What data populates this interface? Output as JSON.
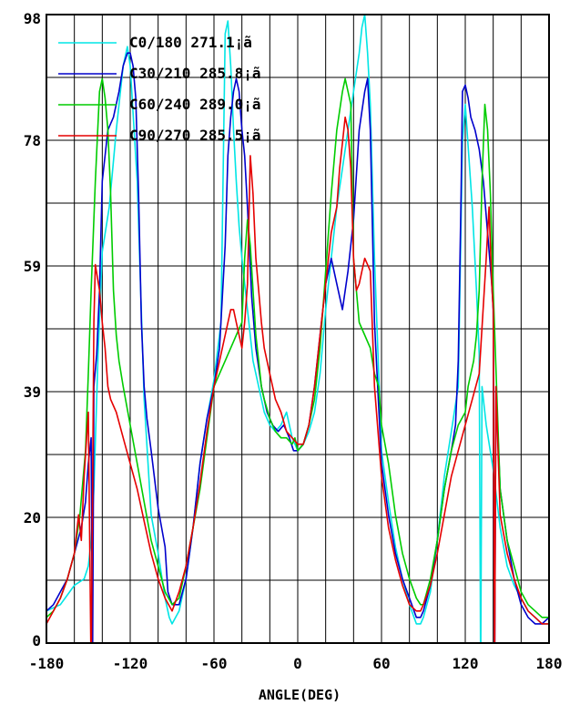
{
  "chart_data": {
    "type": "line",
    "title": "",
    "xlabel": "ANGLE(DEG)",
    "ylabel": "",
    "xlim": [
      -180,
      180
    ],
    "ylim": [
      0,
      98
    ],
    "grid": true,
    "legend_position": "top-left",
    "x_ticks": [
      "-180",
      "-120",
      "-60",
      "0",
      "60",
      "120",
      "180"
    ],
    "y_ticks": [
      "98",
      "78",
      "59",
      "39",
      "20",
      "0"
    ],
    "series": [
      {
        "name": "C0/180 271.1¡ã",
        "color": "#00e5e5",
        "x": [
          -180,
          -170,
          -160,
          -153,
          -150,
          -148,
          -146,
          -143,
          -140,
          -135,
          -130,
          -125,
          -122,
          -120,
          -115,
          -110,
          -105,
          -100,
          -95,
          -92,
          -90,
          -85,
          -80,
          -75,
          -70,
          -65,
          -60,
          -55,
          -52,
          -50,
          -48,
          -46,
          -44,
          -42,
          -40,
          -36,
          -32,
          -28,
          -24,
          -20,
          -16,
          -12,
          -8,
          -4,
          0,
          4,
          8,
          12,
          16,
          20,
          24,
          28,
          32,
          36,
          40,
          44,
          46,
          48,
          50,
          52,
          55,
          60,
          65,
          70,
          75,
          80,
          85,
          88,
          90,
          95,
          100,
          105,
          110,
          115,
          118,
          120,
          125,
          128,
          130,
          131,
          132,
          135,
          140,
          145,
          150,
          155,
          160,
          165,
          170,
          175,
          180
        ],
        "y": [
          5,
          6,
          9,
          10,
          12,
          16,
          24,
          45,
          61,
          68,
          80,
          90,
          93,
          90,
          72,
          38,
          20,
          14,
          7,
          4,
          3,
          5,
          10,
          18,
          28,
          35,
          41,
          50,
          95,
          97,
          90,
          80,
          72,
          65,
          60,
          52,
          44,
          40,
          36,
          34,
          33,
          34,
          36,
          32,
          30,
          31,
          33,
          36,
          42,
          52,
          60,
          68,
          74,
          80,
          86,
          92,
          96,
          98,
          92,
          84,
          60,
          30,
          22,
          15,
          10,
          6,
          3,
          3,
          4,
          8,
          16,
          26,
          33,
          40,
          78,
          84,
          68,
          55,
          45,
          -5,
          40,
          34,
          27,
          18,
          12,
          9,
          7,
          5,
          4,
          3,
          3
        ]
      },
      {
        "name": "C30/210 285.8¡ã",
        "color": "#0000cc",
        "x": [
          -180,
          -175,
          -170,
          -165,
          -160,
          -155,
          -152,
          -150,
          -148,
          -147,
          -146,
          -144,
          -142,
          -140,
          -136,
          -132,
          -128,
          -125,
          -122,
          -120,
          -118,
          -116,
          -114,
          -112,
          -110,
          -108,
          -105,
          -100,
          -95,
          -93,
          -90,
          -85,
          -80,
          -75,
          -70,
          -65,
          -60,
          -56,
          -52,
          -50,
          -48,
          -46,
          -44,
          -42,
          -40,
          -38,
          -36,
          -33,
          -30,
          -26,
          -22,
          -18,
          -14,
          -10,
          -6,
          -3,
          0,
          4,
          8,
          12,
          16,
          20,
          24,
          28,
          32,
          36,
          40,
          44,
          48,
          50,
          52,
          55,
          60,
          65,
          70,
          75,
          80,
          85,
          88,
          90,
          95,
          100,
          105,
          110,
          113,
          115,
          117,
          118,
          120,
          122,
          124,
          127,
          130,
          133,
          136,
          139,
          140,
          141,
          142,
          145,
          150,
          155,
          160,
          165,
          170,
          175,
          180
        ],
        "y": [
          5,
          6,
          8,
          10,
          14,
          18,
          22,
          28,
          32,
          -5,
          40,
          45,
          55,
          72,
          80,
          82,
          86,
          90,
          92,
          92,
          90,
          85,
          70,
          50,
          40,
          35,
          30,
          21,
          15,
          8,
          6,
          6,
          10,
          18,
          28,
          35,
          40,
          46,
          62,
          76,
          82,
          86,
          88,
          86,
          80,
          76,
          68,
          54,
          46,
          40,
          36,
          34,
          33,
          34,
          32,
          30,
          30,
          31,
          34,
          40,
          48,
          56,
          60,
          56,
          52,
          58,
          66,
          80,
          86,
          88,
          80,
          50,
          28,
          20,
          14,
          10,
          7,
          4,
          4,
          5,
          9,
          16,
          24,
          30,
          34,
          44,
          70,
          86,
          87,
          85,
          82,
          80,
          77,
          72,
          64,
          56,
          52,
          -5,
          40,
          24,
          16,
          10,
          6,
          4,
          3,
          3,
          4
        ]
      },
      {
        "name": "C60/240 289.0¡ã",
        "color": "#00cc00",
        "x": [
          -180,
          -175,
          -170,
          -165,
          -160,
          -156,
          -152,
          -150,
          -148,
          -145,
          -142,
          -140,
          -138,
          -136,
          -134,
          -132,
          -130,
          -128,
          -125,
          -120,
          -115,
          -110,
          -105,
          -100,
          -95,
          -90,
          -85,
          -80,
          -75,
          -70,
          -65,
          -60,
          -56,
          -52,
          -48,
          -44,
          -40,
          -38,
          -36,
          -34,
          -32,
          -30,
          -28,
          -26,
          -24,
          -20,
          -16,
          -12,
          -8,
          -4,
          -2,
          0,
          4,
          8,
          12,
          16,
          20,
          24,
          28,
          32,
          34,
          36,
          38,
          40,
          44,
          48,
          52,
          55,
          58,
          60,
          65,
          70,
          75,
          80,
          85,
          88,
          90,
          95,
          100,
          105,
          110,
          115,
          120,
          122,
          124,
          126,
          128,
          130,
          132,
          134,
          136,
          138,
          140,
          145,
          150,
          155,
          160,
          165,
          170,
          175,
          180
        ],
        "y": [
          4,
          5,
          7,
          10,
          14,
          20,
          30,
          42,
          55,
          72,
          86,
          88,
          85,
          80,
          70,
          55,
          48,
          44,
          40,
          34,
          28,
          22,
          16,
          12,
          8,
          6,
          7,
          12,
          18,
          24,
          32,
          40,
          42,
          44,
          46,
          48,
          50,
          60,
          66,
          62,
          55,
          48,
          44,
          40,
          38,
          35,
          33,
          32,
          32,
          31,
          32,
          30,
          31,
          34,
          38,
          46,
          58,
          70,
          80,
          86,
          88,
          86,
          84,
          60,
          50,
          48,
          46,
          42,
          40,
          34,
          28,
          20,
          14,
          10,
          7,
          6,
          6,
          10,
          16,
          24,
          30,
          34,
          36,
          40,
          42,
          44,
          48,
          55,
          72,
          84,
          80,
          70,
          55,
          24,
          16,
          12,
          8,
          6,
          5,
          4,
          4
        ]
      },
      {
        "name": "C90/270 285.5¡ã",
        "color": "#e50000",
        "x": [
          -180,
          -175,
          -170,
          -165,
          -160,
          -157,
          -155,
          -153,
          -150,
          -148,
          -146,
          -145,
          -142,
          -140,
          -138,
          -136,
          -134,
          -132,
          -130,
          -125,
          -120,
          -115,
          -110,
          -105,
          -100,
          -95,
          -90,
          -85,
          -80,
          -75,
          -70,
          -65,
          -60,
          -56,
          -52,
          -48,
          -46,
          -44,
          -42,
          -40,
          -38,
          -36,
          -34,
          -32,
          -30,
          -28,
          -26,
          -24,
          -20,
          -16,
          -12,
          -8,
          -4,
          0,
          4,
          8,
          12,
          16,
          20,
          24,
          28,
          30,
          32,
          34,
          36,
          38,
          40,
          42,
          44,
          46,
          48,
          50,
          52,
          55,
          60,
          65,
          70,
          75,
          80,
          85,
          88,
          90,
          95,
          100,
          105,
          110,
          115,
          120,
          125,
          130,
          135,
          137,
          138,
          139,
          140,
          141,
          142,
          145,
          150,
          155,
          160,
          165,
          170,
          175,
          180
        ],
        "y": [
          3,
          5,
          7,
          10,
          14,
          20,
          16,
          26,
          36,
          -5,
          50,
          59,
          55,
          50,
          46,
          40,
          38,
          37,
          36,
          32,
          28,
          24,
          19,
          14,
          10,
          7,
          5,
          8,
          12,
          18,
          25,
          33,
          40,
          44,
          48,
          52,
          52,
          50,
          48,
          46,
          50,
          56,
          76,
          70,
          60,
          55,
          50,
          46,
          42,
          38,
          36,
          33,
          32,
          31,
          31,
          34,
          40,
          48,
          56,
          64,
          68,
          74,
          78,
          82,
          80,
          74,
          60,
          55,
          56,
          58,
          60,
          59,
          58,
          40,
          26,
          18,
          13,
          9,
          6,
          5,
          5,
          6,
          9,
          14,
          20,
          26,
          30,
          34,
          38,
          42,
          60,
          68,
          62,
          56,
          52,
          -5,
          40,
          20,
          14,
          10,
          7,
          5,
          4,
          3,
          3
        ]
      }
    ]
  }
}
